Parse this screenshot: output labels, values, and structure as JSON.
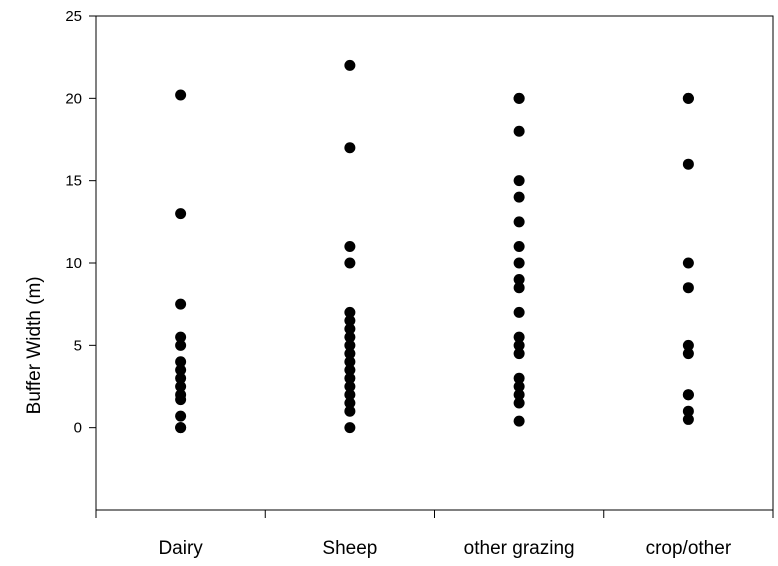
{
  "chart_data": {
    "type": "scatter",
    "title": "",
    "xlabel": "",
    "ylabel": "Buffer Width (m)",
    "categories": [
      "Dairy",
      "Sheep",
      "other grazing",
      "crop/other"
    ],
    "ylim": [
      -5,
      25
    ],
    "y_ticks": [
      0,
      5,
      10,
      15,
      20,
      25
    ],
    "grid": false,
    "marker_color": "#000000",
    "series": [
      {
        "category": "Dairy",
        "values": [
          20.2,
          13,
          7.5,
          5.5,
          5,
          4,
          3.5,
          3,
          2.5,
          2,
          1.7,
          0.7,
          0,
          0
        ]
      },
      {
        "category": "Sheep",
        "values": [
          22,
          17,
          11,
          10,
          7,
          6.5,
          6,
          5.5,
          5,
          4.5,
          4,
          3.5,
          3,
          2.5,
          2,
          1.5,
          1,
          0
        ]
      },
      {
        "category": "other grazing",
        "values": [
          20,
          20,
          18,
          15,
          14,
          12.5,
          11,
          10,
          9,
          8.5,
          7,
          5.5,
          5,
          4.5,
          3,
          2.5,
          2,
          1.5,
          0.4
        ]
      },
      {
        "category": "crop/other",
        "values": [
          20,
          20,
          16,
          10,
          8.5,
          5,
          4.5,
          2,
          2,
          1,
          0.5
        ]
      }
    ]
  }
}
